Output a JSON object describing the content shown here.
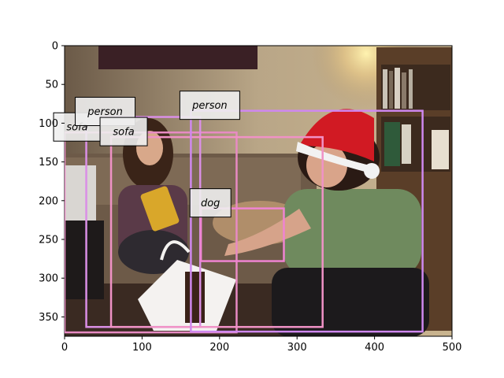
{
  "chart_data": {
    "type": "image-detections",
    "x_ticks": [
      "0",
      "100",
      "200",
      "300",
      "400",
      "500"
    ],
    "y_ticks": [
      "0",
      "50",
      "100",
      "150",
      "200",
      "250",
      "300",
      "350"
    ],
    "xlim": [
      0,
      500
    ],
    "ylim": [
      375,
      0
    ],
    "boxes": [
      {
        "label": "sofa",
        "color": "#e78ac3",
        "x0": 0,
        "y0": 112,
        "x1": 222,
        "y1": 370
      },
      {
        "label": "person",
        "color": "#da8fe6",
        "x0": 28,
        "y0": 92,
        "x1": 175,
        "y1": 363
      },
      {
        "label": "sofa",
        "color": "#f092c6",
        "x0": 60,
        "y0": 118,
        "x1": 333,
        "y1": 363
      },
      {
        "label": "person",
        "color": "#cf88ef",
        "x0": 163,
        "y0": 84,
        "x1": 462,
        "y1": 369
      },
      {
        "label": "dog",
        "color": "#ef84d2",
        "x0": 176,
        "y0": 210,
        "x1": 283,
        "y1": 278
      }
    ]
  }
}
